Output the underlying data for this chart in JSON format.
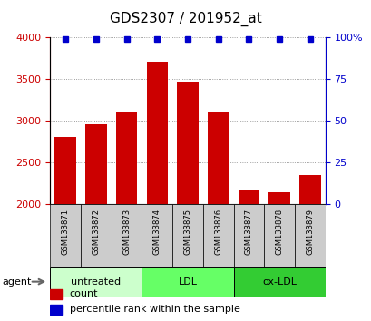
{
  "title": "GDS2307 / 201952_at",
  "samples": [
    "GSM133871",
    "GSM133872",
    "GSM133873",
    "GSM133874",
    "GSM133875",
    "GSM133876",
    "GSM133877",
    "GSM133878",
    "GSM133879"
  ],
  "counts": [
    2800,
    2950,
    3090,
    3700,
    3460,
    3100,
    2160,
    2140,
    2350
  ],
  "percentiles": [
    99,
    99,
    99,
    99,
    99,
    99,
    99,
    99,
    99
  ],
  "bar_color": "#cc0000",
  "dot_color": "#0000cc",
  "ylim_left": [
    2000,
    4000
  ],
  "ylim_right": [
    0,
    100
  ],
  "yticks_left": [
    2000,
    2500,
    3000,
    3500,
    4000
  ],
  "yticks_right": [
    0,
    25,
    50,
    75,
    100
  ],
  "grid_values": [
    2500,
    3000,
    3500,
    4000
  ],
  "groups": [
    {
      "label": "untreated",
      "indices": [
        0,
        1,
        2
      ],
      "color": "#ccffcc"
    },
    {
      "label": "LDL",
      "indices": [
        3,
        4,
        5
      ],
      "color": "#66ff66"
    },
    {
      "label": "ox-LDL",
      "indices": [
        6,
        7,
        8
      ],
      "color": "#33cc33"
    }
  ],
  "agent_label": "agent",
  "legend_count_label": "count",
  "legend_pct_label": "percentile rank within the sample",
  "left_axis_color": "#cc0000",
  "right_axis_color": "#0000cc",
  "sample_box_color": "#cccccc",
  "background_color": "#ffffff",
  "title_fontsize": 11,
  "sample_fontsize": 6,
  "group_fontsize": 8,
  "legend_fontsize": 8
}
